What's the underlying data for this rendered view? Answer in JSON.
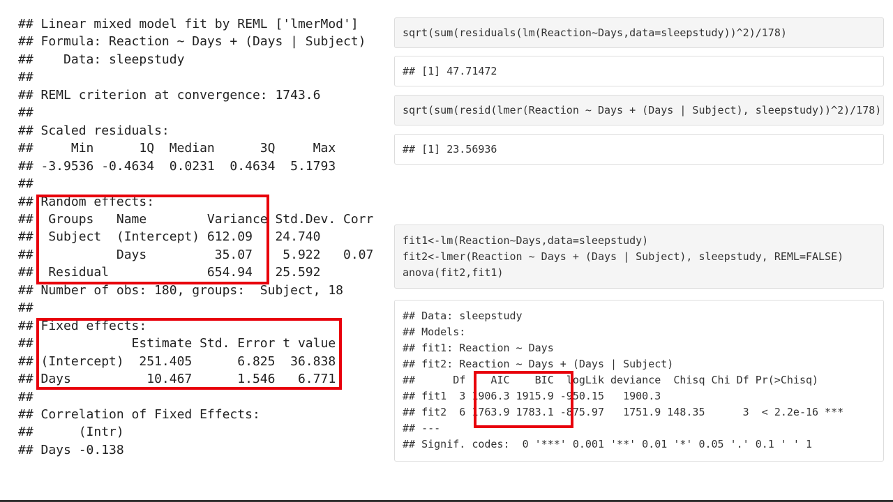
{
  "left_output": {
    "lines": [
      "## Linear mixed model fit by REML ['lmerMod']",
      "## Formula: Reaction ~ Days + (Days | Subject)",
      "##    Data: sleepstudy",
      "##",
      "## REML criterion at convergence: 1743.6",
      "##",
      "## Scaled residuals: ",
      "##     Min      1Q  Median      3Q     Max ",
      "## -3.9536 -0.4634  0.0231  0.4634  5.1793 ",
      "##",
      "## Random effects:",
      "##  Groups   Name        Variance Std.Dev. Corr",
      "##  Subject  (Intercept) 612.09   24.740       ",
      "##           Days         35.07    5.922   0.07",
      "##  Residual             654.94   25.592       ",
      "## Number of obs: 180, groups:  Subject, 18",
      "##",
      "## Fixed effects:",
      "##             Estimate Std. Error t value",
      "## (Intercept)  251.405      6.825  36.838",
      "## Days          10.467      1.546   6.771",
      "##",
      "## Correlation of Fixed Effects:",
      "##      (Intr)",
      "## Days -0.138"
    ]
  },
  "right_blocks": [
    {
      "kind": "code",
      "lines": [
        "sqrt(sum(residuals(lm(Reaction~Days,data=sleepstudy))^2)/178)"
      ]
    },
    {
      "kind": "output",
      "lines": [
        "## [1] 47.71472"
      ]
    },
    {
      "kind": "code",
      "lines": [
        "sqrt(sum(resid(lmer(Reaction ~ Days + (Days | Subject), sleepstudy))^2)/178)"
      ]
    },
    {
      "kind": "output",
      "lines": [
        "## [1] 23.56936"
      ]
    },
    {
      "kind": "code",
      "lines": [
        "fit1<-lm(Reaction~Days,data=sleepstudy)",
        "fit2<-lmer(Reaction ~ Days + (Days | Subject), sleepstudy, REML=FALSE)",
        "anova(fit2,fit1)"
      ]
    },
    {
      "kind": "output",
      "lines": [
        "## Data: sleepstudy",
        "## Models:",
        "## fit1: Reaction ~ Days",
        "## fit2: Reaction ~ Days + (Days | Subject)",
        "##      Df    AIC    BIC  logLik deviance  Chisq Chi Df Pr(>Chisq)    ",
        "## fit1  3 1906.3 1915.9 -950.15   1900.3                             ",
        "## fit2  6 1763.9 1783.1 -875.97   1751.9 148.35      3  < 2.2e-16 ***",
        "## ---",
        "## Signif. codes:  0 '***' 0.001 '**' 0.01 '*' 0.05 '.' 0.1 ' ' 1"
      ]
    }
  ]
}
